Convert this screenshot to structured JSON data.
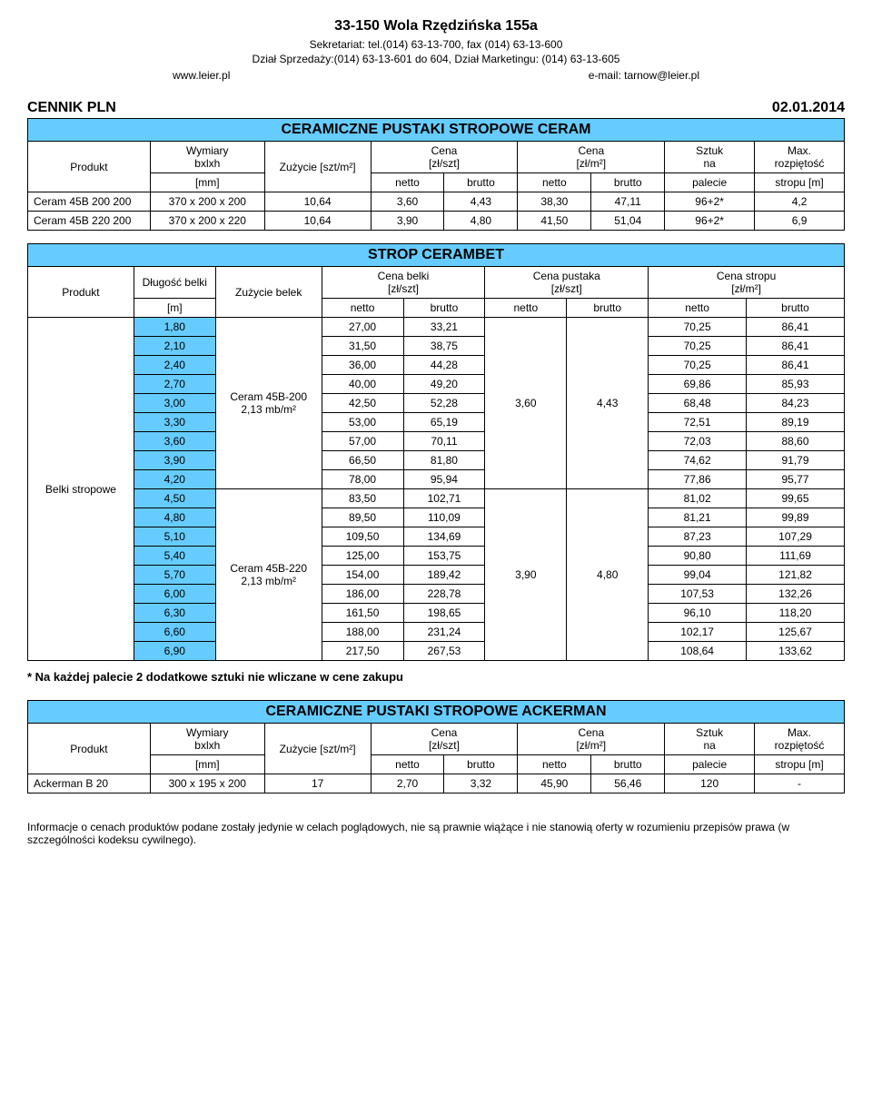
{
  "header": {
    "title": "33-150 Wola Rzędzińska 155a",
    "line1": "Sekretariat: tel.(014) 63-13-700, fax (014) 63-13-600",
    "line2": "Dział Sprzedaży:(014) 63-13-601 do 604, Dział Marketingu: (014) 63-13-605",
    "www": "www.leier.pl",
    "email": "e-mail: tarnow@leier.pl"
  },
  "cennik": {
    "label": "CENNIK PLN",
    "date": "02.01.2014"
  },
  "ceram": {
    "title": "CERAMICZNE PUSTAKI STROPOWE CERAM",
    "headers": {
      "produkt": "Produkt",
      "wymiary": "Wymiary",
      "bxlxh": "bxlxh",
      "zuzycie": "Zużycie [szt/m²]",
      "cena1": "Cena",
      "cena1_unit": "[zł/szt]",
      "cena2": "Cena",
      "cena2_unit": "[zł/m²]",
      "sztuk": "Sztuk",
      "na": "na",
      "max": "Max.",
      "rozp": "rozpiętość",
      "mm": "[mm]",
      "netto": "netto",
      "brutto": "brutto",
      "palecie": "palecie",
      "stropu": "stropu [m]"
    },
    "rows": [
      {
        "name": "Ceram 45B 200 200",
        "dim": "370 x 200 x 200",
        "zu": "10,64",
        "n1": "3,60",
        "b1": "4,43",
        "n2": "38,30",
        "b2": "47,11",
        "sztuk": "96+2*",
        "max": "4,2"
      },
      {
        "name": "Ceram 45B 220 200",
        "dim": "370 x 200 x 220",
        "zu": "10,64",
        "n1": "3,90",
        "b1": "4,80",
        "n2": "41,50",
        "b2": "51,04",
        "sztuk": "96+2*",
        "max": "6,9"
      }
    ]
  },
  "strop": {
    "title": "STROP CERAMBET",
    "headers": {
      "produkt": "Produkt",
      "dlugosc": "Długość belki",
      "zuzycie": "Zużycie belek",
      "cena_belki": "Cena belki",
      "cena_belki_unit": "[zł/szt]",
      "cena_pustaka": "Cena pustaka",
      "cena_pustaka_unit": "[zł/szt]",
      "cena_stropu": "Cena  stropu",
      "cena_stropu_unit": "[zł/m²]",
      "m": "[m]",
      "netto": "netto",
      "brutto": "brutto"
    },
    "produkt": "Belki stropowe",
    "zuzycie1": "Ceram 45B-200 2,13 mb/m²",
    "zuzycie2": "Ceram 45B-220 2,13 mb/m²",
    "pust1_n": "3,60",
    "pust1_b": "4,43",
    "pust2_n": "3,90",
    "pust2_b": "4,80",
    "rows1": [
      {
        "dl": "1,80",
        "bn": "27,00",
        "bb": "33,21",
        "sn": "70,25",
        "sb": "86,41"
      },
      {
        "dl": "2,10",
        "bn": "31,50",
        "bb": "38,75",
        "sn": "70,25",
        "sb": "86,41"
      },
      {
        "dl": "2,40",
        "bn": "36,00",
        "bb": "44,28",
        "sn": "70,25",
        "sb": "86,41"
      },
      {
        "dl": "2,70",
        "bn": "40,00",
        "bb": "49,20",
        "sn": "69,86",
        "sb": "85,93"
      },
      {
        "dl": "3,00",
        "bn": "42,50",
        "bb": "52,28",
        "sn": "68,48",
        "sb": "84,23"
      },
      {
        "dl": "3,30",
        "bn": "53,00",
        "bb": "65,19",
        "sn": "72,51",
        "sb": "89,19"
      },
      {
        "dl": "3,60",
        "bn": "57,00",
        "bb": "70,11",
        "sn": "72,03",
        "sb": "88,60"
      },
      {
        "dl": "3,90",
        "bn": "66,50",
        "bb": "81,80",
        "sn": "74,62",
        "sb": "91,79"
      },
      {
        "dl": "4,20",
        "bn": "78,00",
        "bb": "95,94",
        "sn": "77,86",
        "sb": "95,77"
      }
    ],
    "rows2": [
      {
        "dl": "4,50",
        "bn": "83,50",
        "bb": "102,71",
        "sn": "81,02",
        "sb": "99,65"
      },
      {
        "dl": "4,80",
        "bn": "89,50",
        "bb": "110,09",
        "sn": "81,21",
        "sb": "99,89"
      },
      {
        "dl": "5,10",
        "bn": "109,50",
        "bb": "134,69",
        "sn": "87,23",
        "sb": "107,29"
      },
      {
        "dl": "5,40",
        "bn": "125,00",
        "bb": "153,75",
        "sn": "90,80",
        "sb": "111,69"
      },
      {
        "dl": "5,70",
        "bn": "154,00",
        "bb": "189,42",
        "sn": "99,04",
        "sb": "121,82"
      },
      {
        "dl": "6,00",
        "bn": "186,00",
        "bb": "228,78",
        "sn": "107,53",
        "sb": "132,26"
      },
      {
        "dl": "6,30",
        "bn": "161,50",
        "bb": "198,65",
        "sn": "96,10",
        "sb": "118,20"
      },
      {
        "dl": "6,60",
        "bn": "188,00",
        "bb": "231,24",
        "sn": "102,17",
        "sb": "125,67"
      },
      {
        "dl": "6,90",
        "bn": "217,50",
        "bb": "267,53",
        "sn": "108,64",
        "sb": "133,62"
      }
    ]
  },
  "footnote": "* Na każdej palecie 2 dodatkowe sztuki nie wliczane w cene zakupu",
  "ackerman": {
    "title": "CERAMICZNE PUSTAKI STROPOWE ACKERMAN",
    "row": {
      "name": "Ackerman B 20",
      "dim": "300 x 195 x 200",
      "zu": "17",
      "n1": "2,70",
      "b1": "3,32",
      "n2": "45,90",
      "b2": "56,46",
      "sztuk": "120",
      "max": "-"
    }
  },
  "disclaimer": "Informacje o cenach produktów podane zostały jedynie w celach poglądowych, nie są prawnie wiążące i nie stanowią oferty w rozumieniu przepisów prawa (w szczególności kodeksu cywilnego)."
}
